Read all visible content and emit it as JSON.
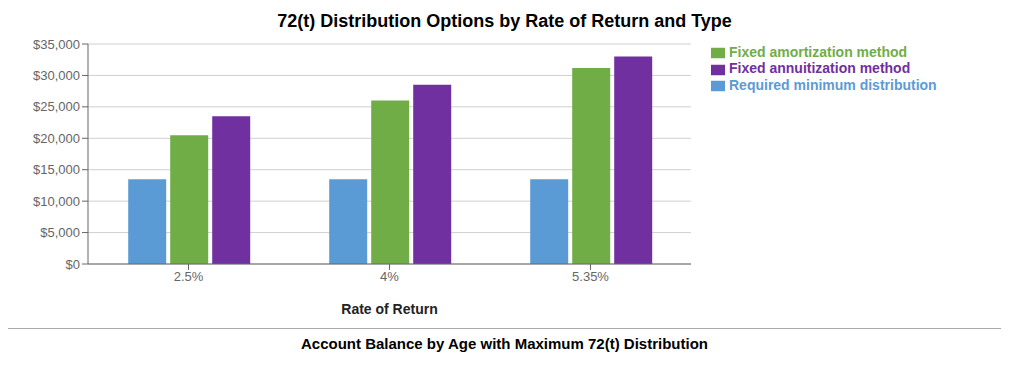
{
  "chart_data": {
    "type": "bar",
    "title": "72(t) Distribution Options by Rate of Return and Type",
    "xlabel": "Rate of Return",
    "annotations": [
      "Account Balance by Age with Maximum 72(t) Distribution"
    ],
    "categories": [
      "2.5%",
      "4%",
      "5.35%"
    ],
    "series": [
      {
        "name": "Required minimum distribution",
        "values": [
          13500,
          13500,
          13500
        ],
        "color": "#5b9bd5"
      },
      {
        "name": "Fixed amortization method",
        "values": [
          20500,
          26000,
          31200
        ],
        "color": "#70ad47"
      },
      {
        "name": "Fixed annuitization method",
        "values": [
          23500,
          28500,
          33000
        ],
        "color": "#7030a0"
      }
    ],
    "ylim": [
      0,
      35000
    ],
    "yticks": [
      {
        "value": 0,
        "label": "$0"
      },
      {
        "value": 5000,
        "label": "$5,000"
      },
      {
        "value": 10000,
        "label": "$10,000"
      },
      {
        "value": 15000,
        "label": "$15,000"
      },
      {
        "value": 20000,
        "label": "$20,000"
      },
      {
        "value": 25000,
        "label": "$25,000"
      },
      {
        "value": 30000,
        "label": "$30,000"
      },
      {
        "value": 35000,
        "label": "$35,000"
      }
    ],
    "grid": true,
    "legend": "right"
  }
}
